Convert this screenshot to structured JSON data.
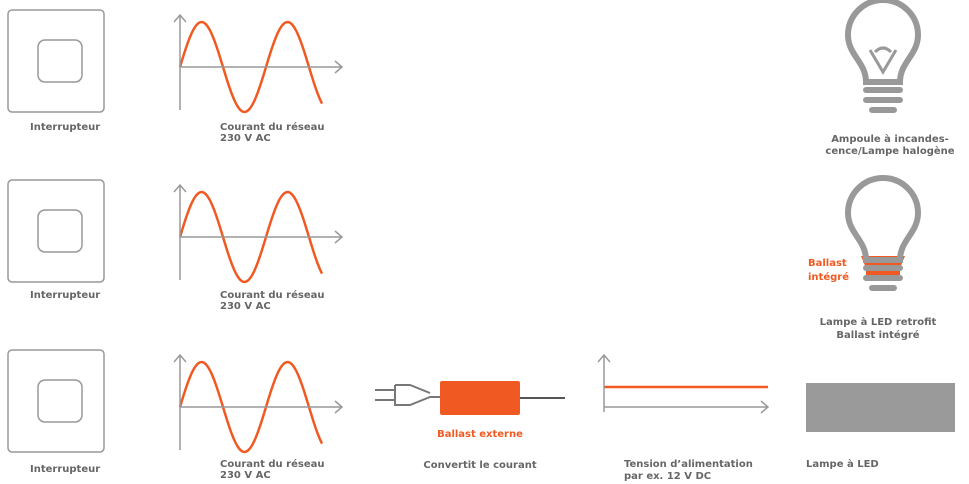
{
  "rows": [
    {
      "switch_label": "Interrupteur",
      "mains_label": [
        "Courant du réseau",
        "230 V AC"
      ],
      "lamp_label": [
        "Ampoule à incandes-",
        "cence/Lampe halogène"
      ]
    },
    {
      "switch_label": "Interrupteur",
      "mains_label": [
        "Courant du réseau",
        "230 V AC"
      ],
      "ballast_label": [
        "Ballast",
        "intégré"
      ],
      "lamp_label": [
        "Lampe à LED retrofit",
        "Ballast intégré"
      ]
    },
    {
      "switch_label": "Interrupteur",
      "mains_label": [
        "Courant du réseau",
        "230 V AC"
      ],
      "ballast_label": [
        "Ballast externe"
      ],
      "converter_label": [
        "Convertit le courant"
      ],
      "supply_label": [
        "Tension d’alimentation",
        "par ex. 12 V DC"
      ],
      "lamp_label": [
        "Lampe à LED"
      ]
    }
  ]
}
